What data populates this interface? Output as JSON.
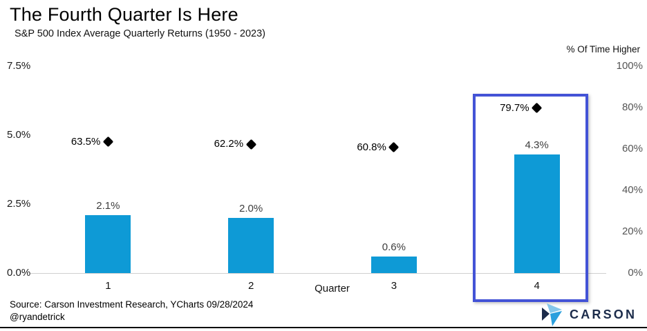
{
  "header": {
    "title": "The Fourth Quarter Is Here",
    "subtitle": "S&P 500 Index Average Quarterly Returns (1950 - 2023)"
  },
  "chart_data": {
    "type": "bar",
    "categories": [
      "1",
      "2",
      "3",
      "4"
    ],
    "xlabel": "Quarter",
    "left_axis": {
      "ticks": [
        {
          "label": "7.5%",
          "value": 7.5
        },
        {
          "label": "5.0%",
          "value": 5.0
        },
        {
          "label": "2.5%",
          "value": 2.5
        },
        {
          "label": "0.0%",
          "value": 0.0
        }
      ],
      "min": 0,
      "max": 7.5
    },
    "right_axis": {
      "label": "% Of Time Higher",
      "ticks": [
        {
          "label": "100%",
          "value": 100
        },
        {
          "label": "80%",
          "value": 80
        },
        {
          "label": "60%",
          "value": 60
        },
        {
          "label": "40%",
          "value": 40
        },
        {
          "label": "20%",
          "value": 20
        },
        {
          "label": "0%",
          "value": 0
        }
      ],
      "min": 0,
      "max": 100
    },
    "series": [
      {
        "name": "Average quarterly return",
        "type": "bar",
        "axis": "left",
        "color": "#0e9ad6",
        "values": [
          2.1,
          2.0,
          0.6,
          4.3
        ],
        "labels": [
          "2.1%",
          "2.0%",
          "0.6%",
          "4.3%"
        ]
      },
      {
        "name": "% Of Time Higher",
        "type": "diamond",
        "axis": "right",
        "color": "#000000",
        "values": [
          63.5,
          62.2,
          60.8,
          79.7
        ],
        "labels": [
          "63.5%",
          "62.2%",
          "60.8%",
          "79.7%"
        ]
      }
    ],
    "highlight": {
      "category": "4",
      "border_color": "#4353d6"
    },
    "grid": false,
    "legend": "none"
  },
  "footer": {
    "source": "Source: Carson Investment Research, YCharts 09/28/2024",
    "handle": "@ryandetrick",
    "brand": "CARSON"
  },
  "colors": {
    "bar": "#0e9ad6",
    "highlight_border": "#4353d6",
    "brand_navy": "#1b2b4a",
    "brand_light_blue": "#85c7ea",
    "brand_blue": "#2a9fdd"
  }
}
